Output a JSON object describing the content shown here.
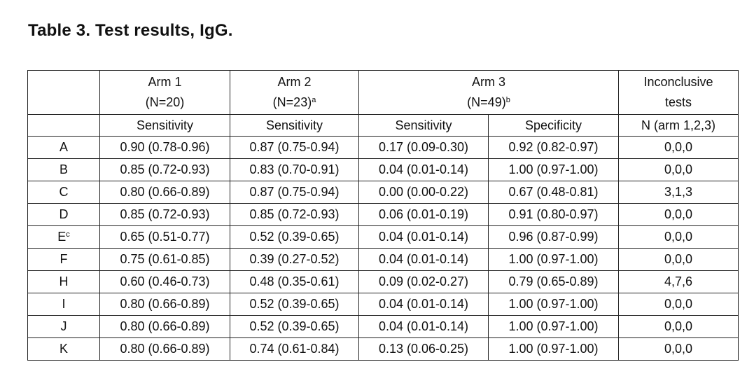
{
  "title": "Table 3. Test results, IgG.",
  "header": {
    "arm1": {
      "name": "Arm 1",
      "n": "(N=20)",
      "sup": ""
    },
    "arm2": {
      "name": "Arm 2",
      "n": "(N=23)",
      "sup": "a"
    },
    "arm3": {
      "name": "Arm 3",
      "n": "(N=49)",
      "sup": "b"
    },
    "inconclusive": {
      "line1": "Inconclusive",
      "line2": "tests",
      "line3": "N (arm 1,2,3)"
    },
    "sub": {
      "arm1": "Sensitivity",
      "arm2": "Sensitivity",
      "arm3_sens": "Sensitivity",
      "arm3_spec": "Specificity"
    }
  },
  "rows": [
    {
      "test": "A",
      "sup": "",
      "arm1": "0.90 (0.78-0.96)",
      "arm2": "0.87 (0.75-0.94)",
      "arm3_sens": "0.17 (0.09-0.30)",
      "arm3_spec": "0.92 (0.82-0.97)",
      "inconclusive": "0,0,0"
    },
    {
      "test": "B",
      "sup": "",
      "arm1": "0.85 (0.72-0.93)",
      "arm2": "0.83 (0.70-0.91)",
      "arm3_sens": "0.04 (0.01-0.14)",
      "arm3_spec": "1.00 (0.97-1.00)",
      "inconclusive": "0,0,0"
    },
    {
      "test": "C",
      "sup": "",
      "arm1": "0.80 (0.66-0.89)",
      "arm2": "0.87 (0.75-0.94)",
      "arm3_sens": "0.00 (0.00-0.22)",
      "arm3_spec": "0.67 (0.48-0.81)",
      "inconclusive": "3,1,3"
    },
    {
      "test": "D",
      "sup": "",
      "arm1": "0.85 (0.72-0.93)",
      "arm2": "0.85 (0.72-0.93)",
      "arm3_sens": "0.06 (0.01-0.19)",
      "arm3_spec": "0.91 (0.80-0.97)",
      "inconclusive": "0,0,0"
    },
    {
      "test": "E",
      "sup": "c",
      "arm1": "0.65 (0.51-0.77)",
      "arm2": "0.52 (0.39-0.65)",
      "arm3_sens": "0.04 (0.01-0.14)",
      "arm3_spec": "0.96 (0.87-0.99)",
      "inconclusive": "0,0,0"
    },
    {
      "test": "F",
      "sup": "",
      "arm1": "0.75 (0.61-0.85)",
      "arm2": "0.39 (0.27-0.52)",
      "arm3_sens": "0.04 (0.01-0.14)",
      "arm3_spec": "1.00 (0.97-1.00)",
      "inconclusive": "0,0,0"
    },
    {
      "test": "H",
      "sup": "",
      "arm1": "0.60 (0.46-0.73)",
      "arm2": "0.48 (0.35-0.61)",
      "arm3_sens": "0.09 (0.02-0.27)",
      "arm3_spec": "0.79 (0.65-0.89)",
      "inconclusive": "4,7,6"
    },
    {
      "test": "I",
      "sup": "",
      "arm1": "0.80 (0.66-0.89)",
      "arm2": "0.52 (0.39-0.65)",
      "arm3_sens": "0.04 (0.01-0.14)",
      "arm3_spec": "1.00 (0.97-1.00)",
      "inconclusive": "0,0,0"
    },
    {
      "test": "J",
      "sup": "",
      "arm1": "0.80 (0.66-0.89)",
      "arm2": "0.52 (0.39-0.65)",
      "arm3_sens": "0.04 (0.01-0.14)",
      "arm3_spec": "1.00 (0.97-1.00)",
      "inconclusive": "0,0,0"
    },
    {
      "test": "K",
      "sup": "",
      "arm1": "0.80 (0.66-0.89)",
      "arm2": "0.74 (0.61-0.84)",
      "arm3_sens": "0.13 (0.06-0.25)",
      "arm3_spec": "1.00 (0.97-1.00)",
      "inconclusive": "0,0,0"
    }
  ]
}
